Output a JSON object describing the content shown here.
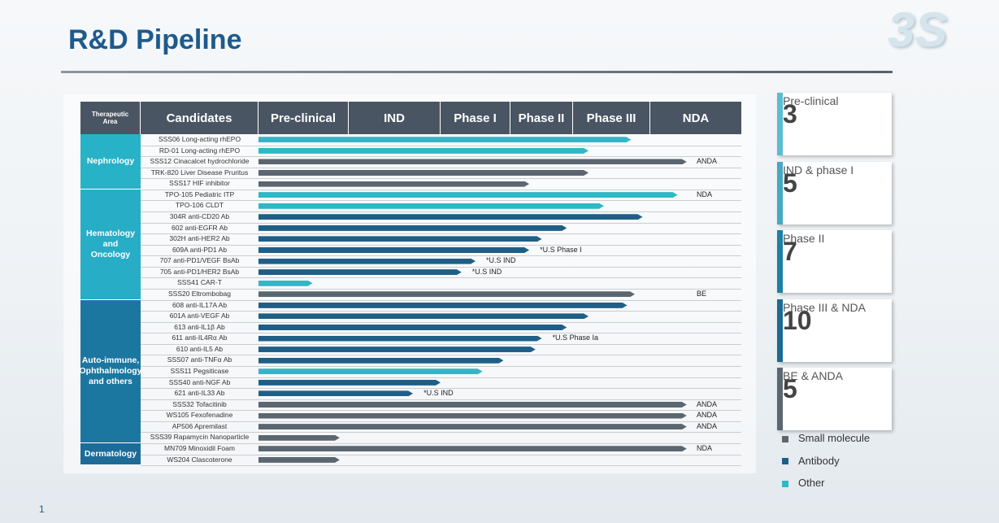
{
  "header": {
    "title": "R&D Pipeline",
    "logo": "3S"
  },
  "pipeline": {
    "columns": [
      "Therapeutic Area",
      "Candidates",
      "Pre-clinical",
      "IND",
      "Phase I",
      "Phase II",
      "Phase III",
      "NDA"
    ],
    "areas": [
      {
        "name": "Nephrology",
        "color": "#27b2c7",
        "rows": [
          {
            "candidate": "SSS06 Long-acting rhEPO",
            "kind": "Other",
            "stage": 4.75
          },
          {
            "candidate": "RD-01 Long-acting rhEPO",
            "kind": "Other",
            "stage": 4.2
          },
          {
            "candidate": "SSS12 Cinacalcet hydrochloride",
            "kind": "Small molecule",
            "stage": 5.4,
            "note": "ANDA"
          },
          {
            "candidate": "TRK-820 Liver Disease Pruritus",
            "kind": "Small molecule",
            "stage": 4.2
          },
          {
            "candidate": "SSS17 HIF inhibitor",
            "kind": "Small molecule",
            "stage": 3.3
          }
        ]
      },
      {
        "name": "Hematology and Oncology",
        "color": "#27adc6",
        "rows": [
          {
            "candidate": "TPO-105 Pediatric ITP",
            "kind": "Other",
            "stage": 5.3,
            "note": "NDA"
          },
          {
            "candidate": "TPO-106 CLDT",
            "kind": "Other",
            "stage": 4.4
          },
          {
            "candidate": "304R anti-CD20 Ab",
            "kind": "Antibody",
            "stage": 4.9
          },
          {
            "candidate": "602 anti-EGFR Ab",
            "kind": "Antibody",
            "stage": 3.9
          },
          {
            "candidate": "302H anti-HER2 Ab",
            "kind": "Antibody",
            "stage": 3.5
          },
          {
            "candidate": "609A anti-PD1 Ab",
            "kind": "Antibody",
            "stage": 3.3,
            "note": "*U.S Phase I"
          },
          {
            "candidate": "707 anti-PD1/VEGF BsAb",
            "kind": "Antibody",
            "stage": 2.5,
            "note": "*U.S IND"
          },
          {
            "candidate": "705 anti-PD1/HER2 BsAb",
            "kind": "Antibody",
            "stage": 2.3,
            "note": "*U.S IND"
          },
          {
            "candidate": "SSS41 CAR-T",
            "kind": "Other",
            "stage": 0.6
          },
          {
            "candidate": "SSS20 Eltrombobag",
            "kind": "Small molecule",
            "stage": 4.8,
            "note": "BE"
          }
        ]
      },
      {
        "name": "Auto-immune, Ophthalmology and others",
        "color": "#1c77a0",
        "rows": [
          {
            "candidate": "608 anti-IL17A Ab",
            "kind": "Antibody",
            "stage": 4.7
          },
          {
            "candidate": "601A anti-VEGF Ab",
            "kind": "Antibody",
            "stage": 4.2
          },
          {
            "candidate": "613 anti-IL1β Ab",
            "kind": "Antibody",
            "stage": 3.9
          },
          {
            "candidate": "611 anti-IL4Rα Ab",
            "kind": "Antibody",
            "stage": 3.5,
            "note": "*U.S Phase Ia"
          },
          {
            "candidate": "610 anti-IL5 Ab",
            "kind": "Antibody",
            "stage": 3.4
          },
          {
            "candidate": "SSS07 anti-TNFα Ab",
            "kind": "Antibody",
            "stage": 2.9
          },
          {
            "candidate": "SSS11 Pegsiticase",
            "kind": "Other",
            "stage": 2.6
          },
          {
            "candidate": "SSS40 anti-NGF Ab",
            "kind": "Antibody",
            "stage": 2.0
          },
          {
            "candidate": "621 anti-IL33 Ab",
            "kind": "Antibody",
            "stage": 1.7,
            "note": "*U.S IND"
          },
          {
            "candidate": "SSS32 Tofacitinib",
            "kind": "Small molecule",
            "stage": 5.4,
            "note": "ANDA"
          },
          {
            "candidate": "WS105 Fexofenadine",
            "kind": "Small molecule",
            "stage": 5.4,
            "note": "ANDA"
          },
          {
            "candidate": "AP506 Apremilast",
            "kind": "Small molecule",
            "stage": 5.4,
            "note": "ANDA"
          },
          {
            "candidate": "SSS39 Rapamycin Nanoparticle",
            "kind": "Small molecule",
            "stage": 0.9
          }
        ]
      },
      {
        "name": "Dermatology",
        "color": "#1d6c98",
        "rows": [
          {
            "candidate": "MN709 Minoxidil Foam",
            "kind": "Small molecule",
            "stage": 5.4,
            "note": "NDA"
          },
          {
            "candidate": "WS204 Clascoterone",
            "kind": "Small molecule",
            "stage": 0.9
          }
        ]
      }
    ]
  },
  "summary": [
    {
      "number": 3,
      "label": "Pre-clinical",
      "color": "#5bbdd1"
    },
    {
      "number": 5,
      "label": "IND & phase I",
      "color": "#45a9c2"
    },
    {
      "number": 7,
      "label": "Phase II",
      "color": "#1d80a4"
    },
    {
      "number": 10,
      "label": "Phase III & NDA",
      "color": "#1b6a93"
    },
    {
      "number": 5,
      "label": "BE & ANDA",
      "color": "#5b6670"
    }
  ],
  "legend": [
    {
      "name": "Small molecule",
      "color": "#5b6670"
    },
    {
      "name": "Antibody",
      "color": "#1f5f87"
    },
    {
      "name": "Other",
      "color": "#2fb8c6"
    }
  ],
  "page_number": 1
}
